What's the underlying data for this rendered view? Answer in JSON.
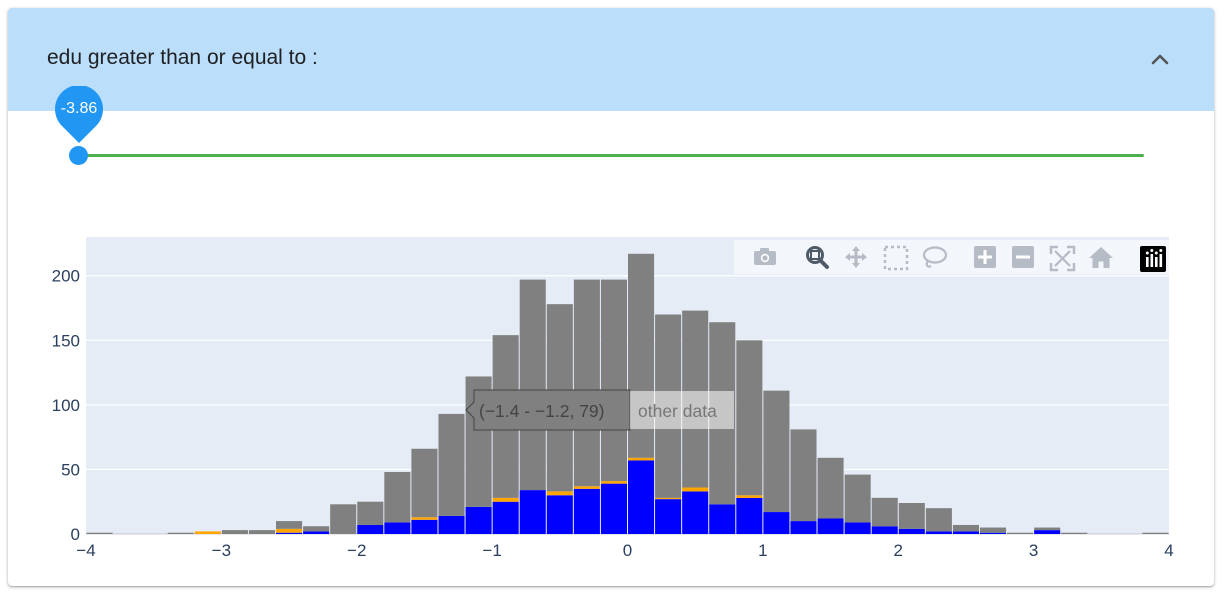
{
  "filter": {
    "title": "edu greater than or equal to :",
    "collapse_icon": "chevron-up-icon"
  },
  "slider": {
    "value_label": "-3.86",
    "value": -3.86,
    "track_color": "#4caf50",
    "thumb_color": "#2196f3"
  },
  "modebar": {
    "buttons": [
      "camera-icon",
      "zoom-icon",
      "pan-icon",
      "box-select-icon",
      "lasso-icon",
      "zoom-in-icon",
      "zoom-out-icon",
      "autoscale-icon",
      "reset-axes-icon",
      "plotly-logo-icon"
    ]
  },
  "tooltip": {
    "text": "(−1.4 - −1.2, 79)",
    "series_label": "other data"
  },
  "chart_data": {
    "type": "bar",
    "barmode": "stack",
    "xlim": [
      -4,
      4
    ],
    "ylim": [
      0,
      230
    ],
    "x_ticks": [
      "−4",
      "−3",
      "−2",
      "−1",
      "0",
      "1",
      "2",
      "3",
      "4"
    ],
    "y_ticks": [
      "0",
      "50",
      "100",
      "150",
      "200"
    ],
    "grid": true,
    "bin_width": 0.2,
    "x": [
      -3.9,
      -3.7,
      -3.5,
      -3.3,
      -3.1,
      -2.9,
      -2.7,
      -2.5,
      -2.3,
      -2.1,
      -1.9,
      -1.7,
      -1.5,
      -1.3,
      -1.1,
      -0.9,
      -0.7,
      -0.5,
      -0.3,
      -0.1,
      0.1,
      0.3,
      0.5,
      0.7,
      0.9,
      1.1,
      1.3,
      1.5,
      1.7,
      1.9,
      2.1,
      2.3,
      2.5,
      2.7,
      2.9,
      3.1,
      3.3,
      3.5,
      3.7,
      3.9
    ],
    "series": [
      {
        "color": "#0000ff",
        "values": [
          0,
          0,
          0,
          0,
          0,
          0,
          0,
          1,
          2,
          0,
          7,
          9,
          11,
          14,
          21,
          25,
          34,
          30,
          35,
          39,
          57,
          27,
          33,
          23,
          28,
          17,
          10,
          12,
          9,
          6,
          4,
          2,
          2,
          1,
          0,
          3,
          0,
          0,
          0,
          0
        ]
      },
      {
        "color": "#ffa500",
        "values": [
          0,
          0,
          0,
          0,
          2,
          0,
          0,
          3,
          0,
          0,
          0,
          0,
          2,
          0,
          0,
          3,
          0,
          3,
          2,
          2,
          2,
          1,
          3,
          0,
          2,
          0,
          0,
          0,
          0,
          0,
          0,
          0,
          0,
          0,
          0,
          0,
          0,
          0,
          0,
          0
        ]
      },
      {
        "color": "#808080",
        "values": [
          1,
          0,
          0,
          1,
          0,
          3,
          3,
          6,
          4,
          23,
          18,
          39,
          53,
          79,
          101,
          126,
          163,
          145,
          160,
          156,
          158,
          142,
          137,
          141,
          120,
          94,
          71,
          47,
          37,
          22,
          20,
          18,
          5,
          4,
          1,
          2,
          1,
          0,
          0,
          1
        ]
      }
    ],
    "plot_bg": "#e5ecf6"
  }
}
